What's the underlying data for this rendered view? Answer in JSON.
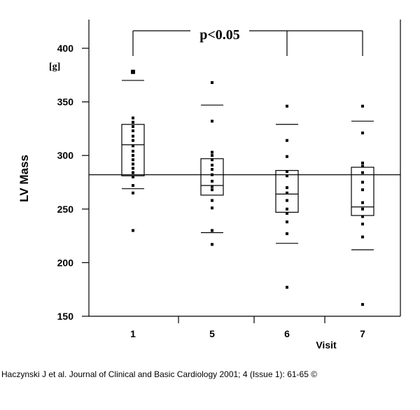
{
  "chart_data": {
    "type": "box-dot",
    "ylabel": "LV Mass",
    "yunit": "[g]",
    "xlabel": "Visit",
    "ylim": [
      150,
      425
    ],
    "yticks": [
      150,
      200,
      250,
      300,
      350,
      400
    ],
    "reference_line": 282,
    "significance": {
      "label": "p<0.05",
      "from": "1",
      "to": [
        "6",
        "7"
      ]
    },
    "groups": [
      {
        "category": "1",
        "whisker_high": 370,
        "q3": 329,
        "median": 310,
        "q1": 281,
        "whisker_low": 269,
        "points": [
          378,
          335,
          331,
          327,
          323,
          318,
          314,
          309,
          304,
          300,
          296,
          292,
          288,
          284,
          280,
          272,
          265,
          230
        ],
        "highlight_point": 378
      },
      {
        "category": "5",
        "whisker_high": 347,
        "q3": 297,
        "median": 272,
        "q1": 263,
        "whisker_low": 228,
        "points": [
          368,
          332,
          303,
          300,
          296,
          291,
          287,
          282,
          276,
          271,
          268,
          258,
          251,
          230,
          217
        ],
        "highlight_point": null
      },
      {
        "category": "6",
        "whisker_high": 329,
        "q3": 286,
        "median": 264,
        "q1": 247,
        "whisker_low": 218,
        "points": [
          346,
          314,
          299,
          285,
          281,
          270,
          265,
          258,
          250,
          246,
          238,
          227,
          177
        ],
        "highlight_point": null
      },
      {
        "category": "7",
        "whisker_high": 332,
        "q3": 289,
        "median": 252,
        "q1": 244,
        "whisker_low": 212,
        "points": [
          346,
          321,
          293,
          290,
          284,
          275,
          268,
          256,
          250,
          243,
          236,
          224,
          161
        ],
        "highlight_point": null
      }
    ]
  },
  "citation": "Haczynski J et al. Journal of Clinical and Basic Cardiology 2001; 4 (Issue 1): 61-65 ©"
}
